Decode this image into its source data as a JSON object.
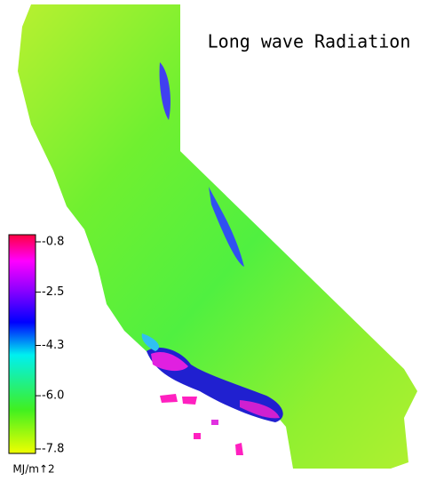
{
  "title": "Long wave Radiation",
  "colorbar": {
    "label": "MJ/m↑2",
    "range": [
      -7.8,
      -0.8
    ],
    "ticks": [
      -0.8,
      -2.5,
      -4.3,
      {
        "value": -6,
        "label": "-6.0"
      },
      -7.8
    ]
  }
}
